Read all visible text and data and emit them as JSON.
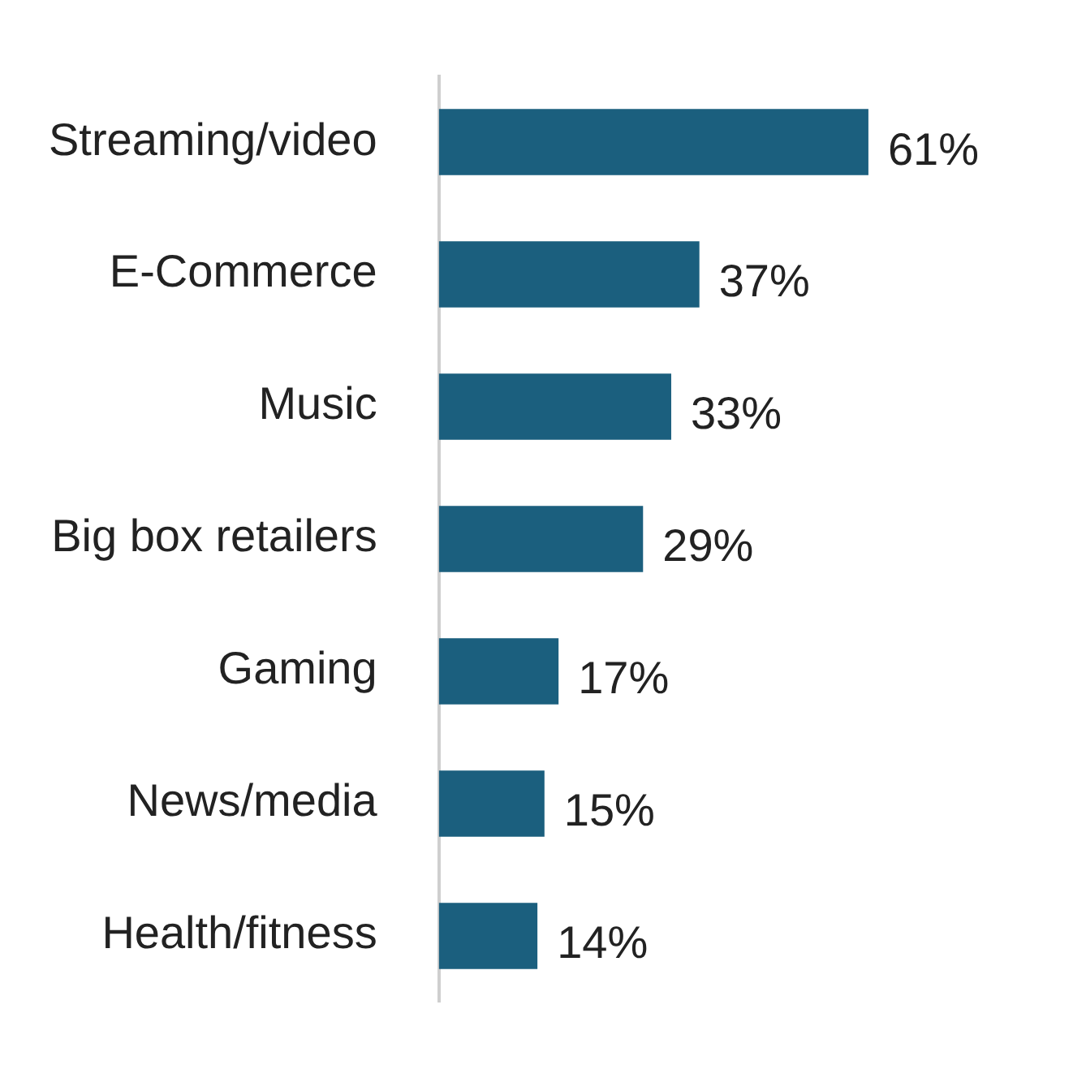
{
  "chart_data": {
    "type": "bar",
    "orientation": "horizontal",
    "categories": [
      "Streaming/video",
      "E-Commerce",
      "Music",
      "Big box retailers",
      "Gaming",
      "News/media",
      "Health/fitness"
    ],
    "values": [
      61,
      37,
      33,
      29,
      17,
      15,
      14
    ],
    "color": "#1b5f7e",
    "value_labels": [
      "61%",
      "37%",
      "33%",
      "29%",
      "17%",
      "15%",
      "14%"
    ],
    "tick_labels": "y"
  }
}
